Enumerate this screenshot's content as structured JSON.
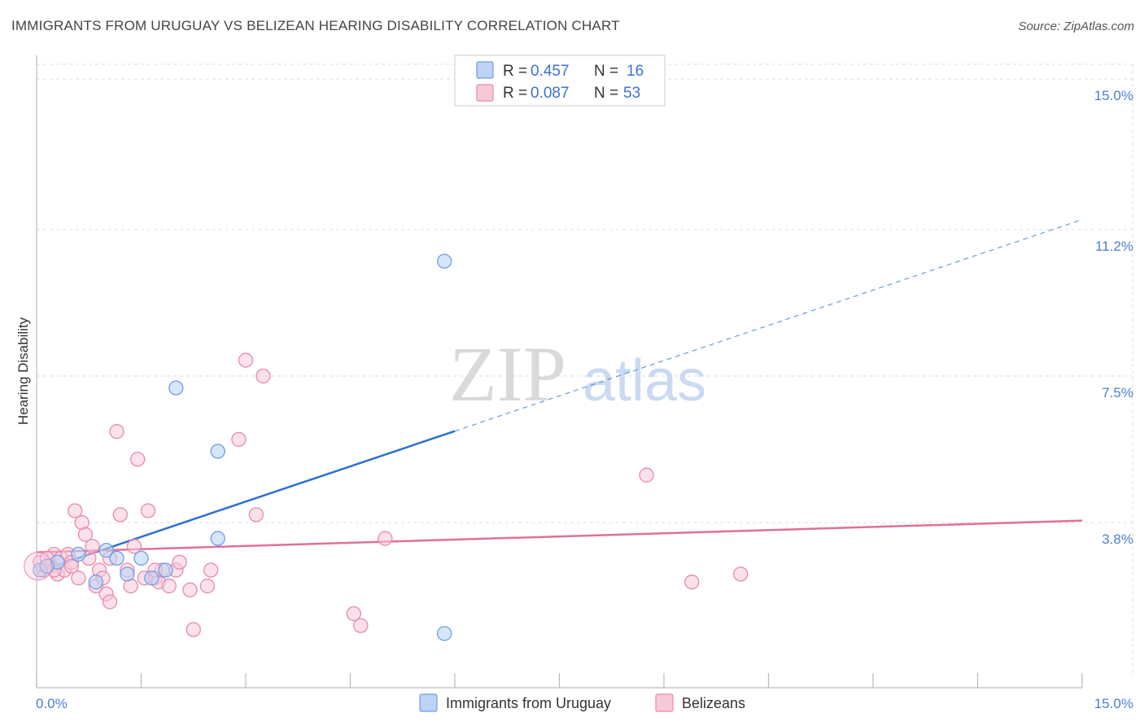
{
  "title": "IMMIGRANTS FROM URUGUAY VS BELIZEAN HEARING DISABILITY CORRELATION CHART",
  "source": "Source: ZipAtlas.com",
  "watermark": {
    "zip": "ZIP",
    "atlas": "atlas"
  },
  "colors": {
    "blue": "#6f9de6",
    "blue_fill": "#bcd3f5",
    "blue_line": "#2d6fd1",
    "pink": "#e889aa",
    "pink_fill": "#f7c9d8",
    "pink_line": "#e0709a",
    "axis_text": "#4a7fd4",
    "grid": "#dddddd"
  },
  "legend": {
    "rows": [
      {
        "r_label": "R =",
        "r_value": "0.457",
        "n_label": "N =",
        "n_value": "16"
      },
      {
        "r_label": "R =",
        "r_value": "0.087",
        "n_label": "N =",
        "n_value": "53"
      }
    ]
  },
  "chart_data": {
    "type": "scatter",
    "xlabel": "",
    "ylabel": "Hearing Disability",
    "xlim": [
      0,
      15
    ],
    "ylim": [
      0,
      15.7
    ],
    "x_tick_labels": [
      "0.0%",
      "15.0%"
    ],
    "y_ticks": [
      3.8,
      7.5,
      11.2,
      15.0
    ],
    "y_tick_labels": [
      "3.8%",
      "7.5%",
      "11.2%",
      "15.0%"
    ],
    "series": [
      {
        "name": "Immigrants from Uruguay",
        "color": "blue",
        "points": [
          [
            0.05,
            2.6
          ],
          [
            0.3,
            2.8
          ],
          [
            0.6,
            3.0
          ],
          [
            0.85,
            2.3
          ],
          [
            1.0,
            3.1
          ],
          [
            1.15,
            2.9
          ],
          [
            1.3,
            2.5
          ],
          [
            1.5,
            2.9
          ],
          [
            1.65,
            2.4
          ],
          [
            1.85,
            2.6
          ],
          [
            2.0,
            7.2
          ],
          [
            2.6,
            5.6
          ],
          [
            2.6,
            3.4
          ],
          [
            5.85,
            10.4
          ],
          [
            5.85,
            1.0
          ],
          [
            0.15,
            2.7
          ]
        ],
        "trend": {
          "x": [
            0,
            15
          ],
          "y": [
            2.55,
            11.45
          ],
          "solid_until": 6.0
        }
      },
      {
        "name": "Belizeans",
        "color": "pink",
        "points": [
          [
            0.05,
            2.8
          ],
          [
            0.1,
            2.6
          ],
          [
            0.2,
            2.7
          ],
          [
            0.25,
            3.0
          ],
          [
            0.3,
            2.5
          ],
          [
            0.35,
            2.9
          ],
          [
            0.4,
            2.6
          ],
          [
            0.45,
            3.0
          ],
          [
            0.5,
            2.8
          ],
          [
            0.55,
            4.1
          ],
          [
            0.6,
            2.4
          ],
          [
            0.65,
            3.8
          ],
          [
            0.7,
            3.5
          ],
          [
            0.75,
            2.9
          ],
          [
            0.8,
            3.2
          ],
          [
            0.85,
            2.2
          ],
          [
            0.9,
            2.6
          ],
          [
            0.95,
            2.4
          ],
          [
            1.0,
            2.0
          ],
          [
            1.05,
            1.8
          ],
          [
            1.15,
            6.1
          ],
          [
            1.2,
            4.0
          ],
          [
            1.3,
            2.6
          ],
          [
            1.35,
            2.2
          ],
          [
            1.4,
            3.2
          ],
          [
            1.45,
            5.4
          ],
          [
            1.55,
            2.4
          ],
          [
            1.6,
            4.1
          ],
          [
            1.7,
            2.4
          ],
          [
            1.75,
            2.3
          ],
          [
            1.8,
            2.6
          ],
          [
            1.9,
            2.2
          ],
          [
            2.0,
            2.6
          ],
          [
            2.05,
            2.8
          ],
          [
            2.2,
            2.1
          ],
          [
            2.25,
            1.1
          ],
          [
            2.45,
            2.2
          ],
          [
            2.5,
            2.6
          ],
          [
            2.9,
            5.9
          ],
          [
            3.0,
            7.9
          ],
          [
            3.15,
            4.0
          ],
          [
            3.25,
            7.5
          ],
          [
            4.55,
            1.5
          ],
          [
            4.65,
            1.2
          ],
          [
            5.0,
            3.4
          ],
          [
            8.75,
            5.0
          ],
          [
            9.4,
            2.3
          ],
          [
            10.1,
            2.5
          ],
          [
            0.15,
            2.9
          ],
          [
            0.5,
            2.7
          ],
          [
            1.05,
            2.9
          ],
          [
            1.7,
            2.6
          ],
          [
            0.25,
            2.6
          ]
        ],
        "trend": {
          "x": [
            0,
            15
          ],
          "y": [
            3.05,
            3.85
          ]
        }
      }
    ]
  }
}
